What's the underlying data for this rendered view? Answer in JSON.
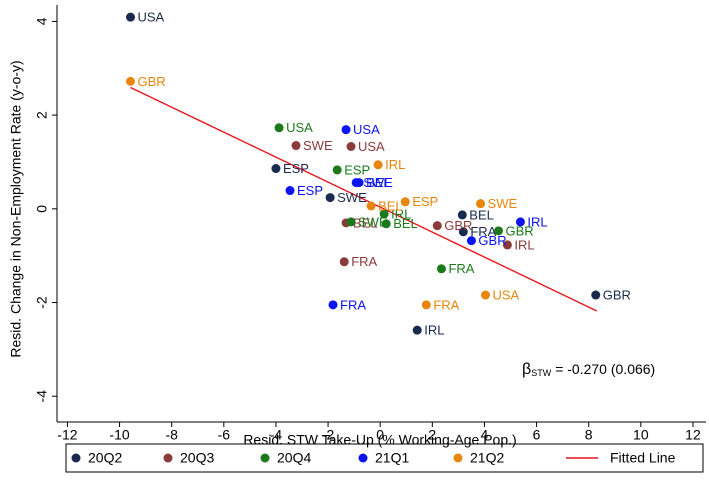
{
  "chart_data": {
    "type": "scatter",
    "x_label": "Resid. STW Take-Up (% Working-Age Pop.)",
    "y_label": "Resid. Change in Non-Employment Rate (y-o-y)",
    "xlim": [
      -12.4,
      12.5
    ],
    "ylim": [
      -4.55,
      4.35
    ],
    "xticks": [
      -12,
      -10,
      -8,
      -6,
      -4,
      -2,
      0,
      2,
      4,
      6,
      8,
      10,
      12
    ],
    "yticks": [
      -4,
      -2,
      0,
      2,
      4
    ],
    "series": [
      {
        "name": "20Q2",
        "color": "#1a2a4f",
        "labels": [
          "USA",
          "ESP",
          "SWE",
          "BEL",
          "FRA",
          "IRL",
          "GBR"
        ],
        "x": [
          -9.58,
          -4.0,
          -1.92,
          3.15,
          3.19,
          1.42,
          8.27
        ],
        "y": [
          4.09,
          0.86,
          0.24,
          -0.13,
          -0.49,
          -2.59,
          -1.84
        ]
      },
      {
        "name": "20Q3",
        "color": "#8b3a3a",
        "labels": [
          "SWE",
          "USA",
          "BEL",
          "GBR",
          "IRL",
          "FRA"
        ],
        "x": [
          -3.23,
          -1.12,
          -1.31,
          2.19,
          4.88,
          -1.38
        ],
        "y": [
          1.35,
          1.33,
          -0.3,
          -0.36,
          -0.77,
          -1.13
        ]
      },
      {
        "name": "20Q4",
        "color": "#1a7a1a",
        "labels": [
          "USA",
          "ESP",
          "SWE",
          "BEL",
          "GBR",
          "FRA",
          "IRL"
        ],
        "x": [
          -3.88,
          -1.65,
          -1.12,
          0.23,
          4.54,
          2.35,
          0.15
        ],
        "y": [
          1.73,
          0.83,
          -0.28,
          -0.32,
          -0.47,
          -1.28,
          -0.11
        ]
      },
      {
        "name": "21Q1",
        "color": "#0a14f0",
        "labels": [
          "USA",
          "SWE",
          "BEL",
          "ESP",
          "GBR",
          "IRL",
          "FRA"
        ],
        "x": [
          -1.31,
          -0.92,
          -0.81,
          -3.46,
          3.5,
          5.38,
          -1.81
        ],
        "y": [
          1.69,
          0.56,
          0.56,
          0.39,
          -0.68,
          -0.28,
          -2.05
        ]
      },
      {
        "name": "21Q2",
        "color": "#e8860c",
        "labels": [
          "GBR",
          "IRL",
          "ESP",
          "BEL",
          "SWE",
          "FRA",
          "USA"
        ],
        "x": [
          -9.58,
          -0.08,
          0.96,
          -0.35,
          3.85,
          1.77,
          4.04
        ],
        "y": [
          2.72,
          0.94,
          0.15,
          0.06,
          0.11,
          -2.05,
          -1.84
        ]
      }
    ],
    "fit": {
      "name": "Fitted Line",
      "color": "#e8141a",
      "x": [
        -9.58,
        8.31
      ],
      "y": [
        2.59,
        -2.18
      ]
    },
    "annotation": {
      "symbol": "β",
      "subscript": "STW",
      "text": "= -0.270 (0.066)"
    }
  }
}
